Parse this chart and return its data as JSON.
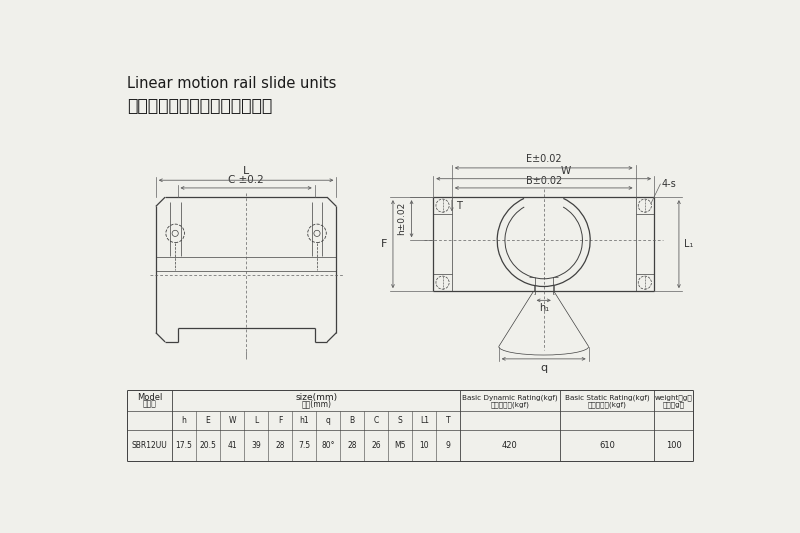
{
  "title_en": "Linear motion rail slide units",
  "title_jp": "リニアガイドスライドユニット",
  "bg_color": "#f0f0eb",
  "line_color": "#404040",
  "dim_color": "#606060",
  "sub_headers": [
    "h",
    "E",
    "W",
    "L",
    "F",
    "h1",
    "q",
    "B",
    "C",
    "S",
    "L1",
    "T"
  ],
  "data_vals": [
    "17.5",
    "20.5",
    "41",
    "39",
    "28",
    "7.5",
    "80°",
    "28",
    "26",
    "M5",
    "10",
    "9"
  ],
  "model": "SBR12UU",
  "dyn_rating": "420",
  "static_rating": "610",
  "weight": "100"
}
